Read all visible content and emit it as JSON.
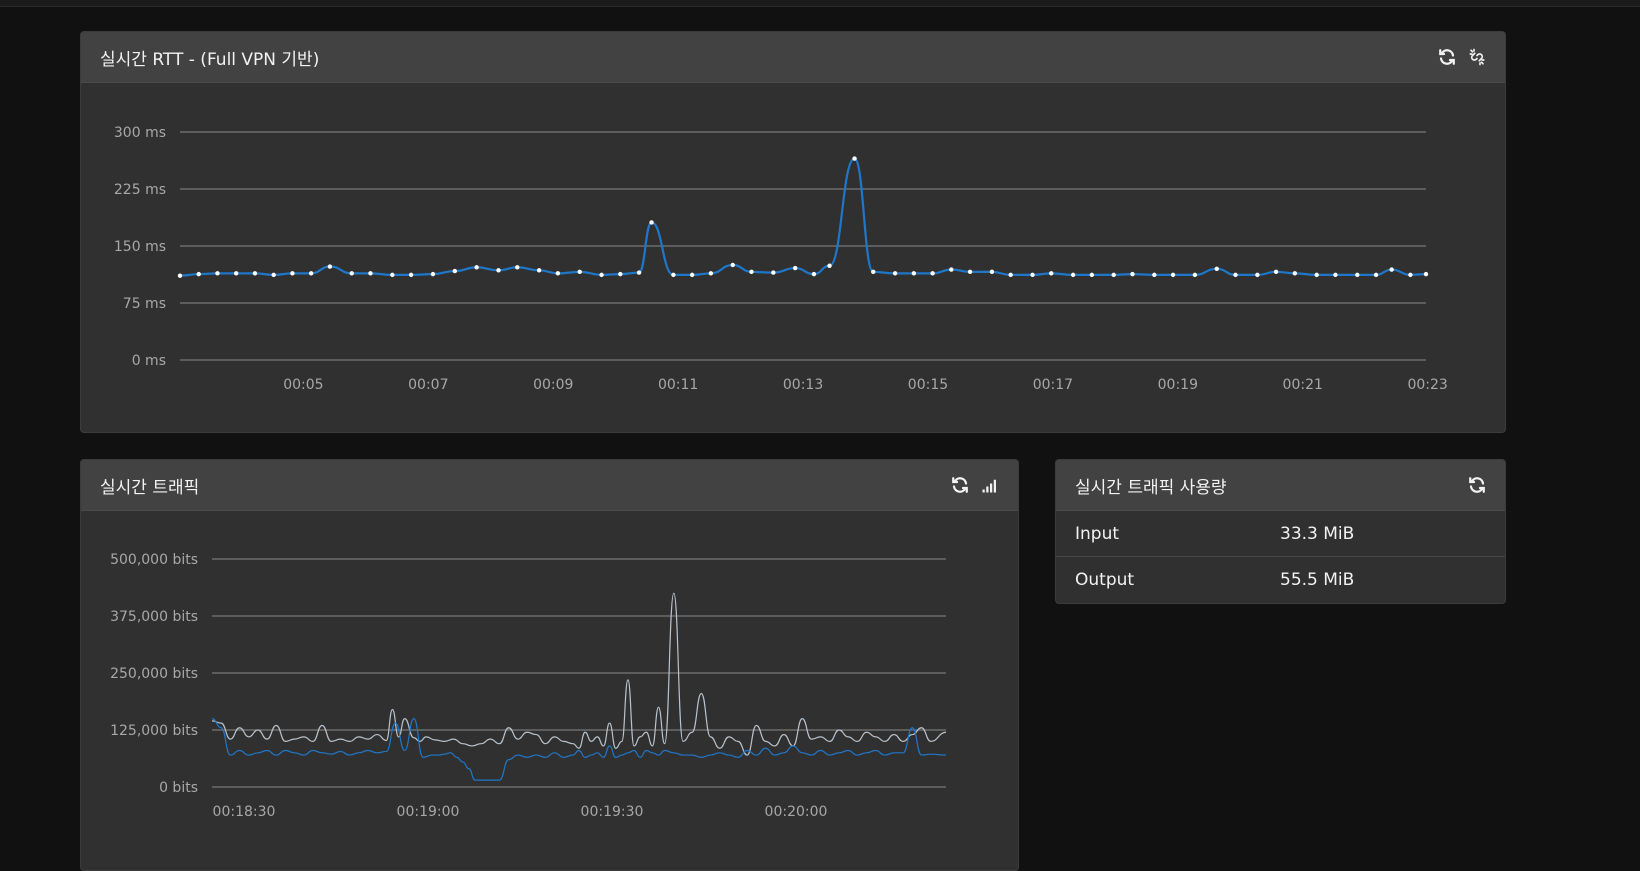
{
  "rtt_panel": {
    "title": "실시간 RTT - (Full VPN 기반)",
    "icons": [
      "refresh-icon",
      "unlink-icon"
    ],
    "chart_data": {
      "type": "line",
      "title": "",
      "ylabel": "",
      "xlabel": "",
      "ylim": [
        0,
        300
      ],
      "y_ticks": [
        "0 ms",
        "75 ms",
        "150 ms",
        "225 ms",
        "300 ms"
      ],
      "x_ticks": [
        "00:05",
        "00:07",
        "00:09",
        "00:11",
        "00:13",
        "00:15",
        "00:17",
        "00:19",
        "00:21",
        "00:23"
      ],
      "x_range": [
        3.2,
        23.15
      ],
      "series": [
        {
          "color": "#1f77c9",
          "x": [
            3.2,
            3.5,
            3.8,
            4.1,
            4.4,
            4.7,
            5.0,
            5.3,
            5.6,
            5.95,
            6.25,
            6.6,
            6.9,
            7.25,
            7.6,
            7.95,
            8.3,
            8.6,
            8.95,
            9.25,
            9.6,
            9.95,
            10.25,
            10.55,
            10.75,
            11.1,
            11.4,
            11.7,
            12.05,
            12.35,
            12.7,
            13.05,
            13.35,
            13.6,
            14.0,
            14.3,
            14.65,
            14.95,
            15.25,
            15.55,
            15.85,
            16.2,
            16.5,
            16.85,
            17.15,
            17.5,
            17.8,
            18.15,
            18.45,
            18.8,
            19.1,
            19.45,
            19.8,
            20.1,
            20.45,
            20.75,
            21.05,
            21.4,
            21.7,
            22.05,
            22.35,
            22.6,
            22.9,
            23.15
          ],
          "values": [
            111,
            113,
            114,
            114,
            114,
            112,
            114,
            114,
            123,
            114,
            114,
            112,
            112,
            113,
            117,
            122,
            118,
            122,
            118,
            114,
            116,
            112,
            113,
            115,
            181,
            112,
            112,
            114,
            125,
            116,
            115,
            121,
            113,
            124,
            265,
            116,
            114,
            114,
            114,
            119,
            116,
            116,
            112,
            112,
            114,
            112,
            112,
            112,
            113,
            112,
            112,
            112,
            120,
            112,
            112,
            116,
            114,
            112,
            112,
            112,
            112,
            119,
            112,
            113
          ]
        }
      ]
    }
  },
  "traffic_panel": {
    "title": "실시간 트래픽",
    "icons": [
      "refresh-icon",
      "signal-bars-icon"
    ],
    "chart_data": {
      "type": "line",
      "title": "",
      "ylabel": "",
      "xlabel": "",
      "ylim": [
        0,
        500000
      ],
      "y_ticks": [
        "0 bits",
        "125,000 bits",
        "250,000 bits",
        "375,000 bits",
        "500,000 bits"
      ],
      "x_ticks": [
        "00:18:30",
        "00:19:00",
        "00:19:30",
        "00:20:00"
      ],
      "x_range": [
        0,
        120
      ],
      "series": [
        {
          "color": "#b8c2cc",
          "x": [
            0,
            1.5,
            3,
            4.5,
            6,
            7.5,
            9,
            10.5,
            12,
            13.5,
            15,
            16.5,
            18,
            19.5,
            21,
            22.5,
            24,
            25.5,
            27,
            28.5,
            29.5,
            30.5,
            31.5,
            33,
            34,
            35,
            36.5,
            38,
            39.5,
            41,
            42.5,
            44,
            45.5,
            47,
            48.5,
            50,
            51.5,
            53,
            54.5,
            56,
            57.5,
            59,
            60,
            61,
            62,
            63,
            64,
            65,
            66,
            67,
            68,
            69,
            70,
            71,
            72,
            73,
            74,
            75.5,
            77,
            78.5,
            80,
            81.5,
            83,
            84.5,
            86,
            87.5,
            89,
            90.5,
            92,
            93.5,
            95,
            96.5,
            98,
            99.5,
            101,
            102.5,
            104,
            105.5,
            107,
            108.5,
            110,
            111.5,
            113,
            114.5,
            116,
            117.5,
            120
          ],
          "values": [
            145000,
            140000,
            105000,
            130000,
            110000,
            125000,
            105000,
            135000,
            100000,
            105000,
            110000,
            100000,
            135000,
            100000,
            105000,
            100000,
            110000,
            105000,
            115000,
            102000,
            170000,
            110000,
            150000,
            108000,
            100000,
            110000,
            103000,
            100000,
            105000,
            95000,
            90000,
            95000,
            105000,
            95000,
            130000,
            105000,
            120000,
            115000,
            95000,
            110000,
            100000,
            95000,
            85000,
            120000,
            100000,
            110000,
            90000,
            140000,
            85000,
            100000,
            235000,
            90000,
            110000,
            120000,
            90000,
            175000,
            95000,
            425000,
            100000,
            120000,
            205000,
            110000,
            85000,
            110000,
            100000,
            70000,
            135000,
            100000,
            90000,
            115000,
            90000,
            150000,
            105000,
            110000,
            100000,
            125000,
            110000,
            100000,
            120000,
            110000,
            100000,
            115000,
            100000,
            115000,
            130000,
            100000,
            120000
          ]
        },
        {
          "color": "#1f77c9",
          "x": [
            0,
            1.5,
            3,
            4.5,
            6,
            7.5,
            9,
            10.5,
            12,
            13.5,
            15,
            16.5,
            18,
            19.5,
            21,
            22.5,
            24,
            25.5,
            27,
            28.5,
            30,
            31.5,
            33,
            34.5,
            36,
            37,
            38,
            39,
            40,
            41,
            42,
            43,
            44,
            45,
            46,
            47,
            48.5,
            50,
            51.5,
            53,
            54.5,
            56,
            57.5,
            59,
            60,
            61,
            62,
            63,
            64,
            65,
            66,
            67,
            68,
            69,
            70,
            71,
            72,
            73,
            74,
            75.5,
            77,
            78.5,
            80,
            81.5,
            83,
            84.5,
            86,
            87.5,
            89,
            90.5,
            92,
            93.5,
            95,
            96.5,
            98,
            99.5,
            101,
            102.5,
            104,
            105.5,
            107,
            108.5,
            110,
            111.5,
            113,
            114.5,
            116,
            117.5,
            120
          ],
          "values": [
            150000,
            130000,
            70000,
            80000,
            70000,
            75000,
            80000,
            70000,
            80000,
            75000,
            70000,
            80000,
            75000,
            72000,
            78000,
            70000,
            75000,
            80000,
            75000,
            78000,
            140000,
            80000,
            150000,
            65000,
            70000,
            70000,
            72000,
            75000,
            65000,
            55000,
            40000,
            15000,
            15000,
            15000,
            15000,
            15000,
            60000,
            70000,
            65000,
            70000,
            65000,
            75000,
            65000,
            70000,
            80000,
            65000,
            70000,
            75000,
            65000,
            90000,
            65000,
            70000,
            75000,
            80000,
            65000,
            80000,
            75000,
            70000,
            80000,
            75000,
            70000,
            70000,
            65000,
            70000,
            75000,
            70000,
            65000,
            80000,
            70000,
            85000,
            70000,
            75000,
            90000,
            75000,
            70000,
            80000,
            70000,
            75000,
            80000,
            70000,
            75000,
            80000,
            70000,
            75000,
            75000,
            130000,
            70000,
            72000,
            70000
          ]
        }
      ]
    }
  },
  "usage_panel": {
    "title": "실시간 트래픽 사용량",
    "icons": [
      "refresh-icon"
    ],
    "rows": [
      {
        "label": "Input",
        "value": "33.3 MiB"
      },
      {
        "label": "Output",
        "value": "55.5 MiB"
      }
    ]
  }
}
